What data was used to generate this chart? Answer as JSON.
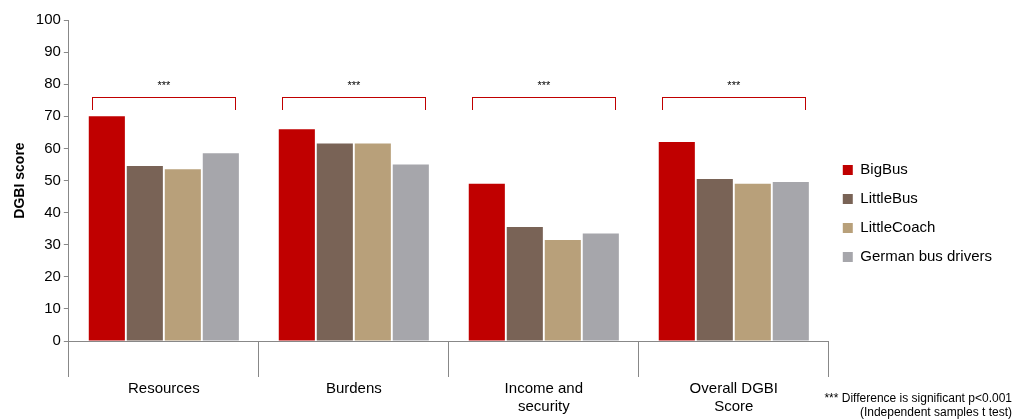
{
  "chart_data": {
    "type": "bar",
    "ylabel": "DGBI score",
    "categories": [
      "Resources",
      "Burdens",
      "Income and security",
      "Overall DGBI Score"
    ],
    "series": [
      {
        "name": "BigBus",
        "color": "#c00000",
        "values": [
          70,
          66,
          49,
          62
        ]
      },
      {
        "name": "LittleBus",
        "color": "#796356",
        "values": [
          54.5,
          61.5,
          35.5,
          50.5
        ]
      },
      {
        "name": "LittleCoach",
        "color": "#b8a07a",
        "values": [
          53.5,
          61.5,
          31.5,
          49
        ]
      },
      {
        "name": "German bus drivers",
        "color": "#a6a6ab",
        "values": [
          58.5,
          55,
          33.5,
          49.5
        ]
      }
    ],
    "ylim": [
      0,
      100
    ],
    "yticks": [
      0,
      10,
      20,
      30,
      40,
      50,
      60,
      70,
      80,
      90,
      100
    ],
    "grid": false,
    "legend": "right",
    "annotations": [
      "***",
      "***",
      "***",
      "***",
      "*** Difference is significant p<0.001 (Independent samples t test)"
    ]
  }
}
